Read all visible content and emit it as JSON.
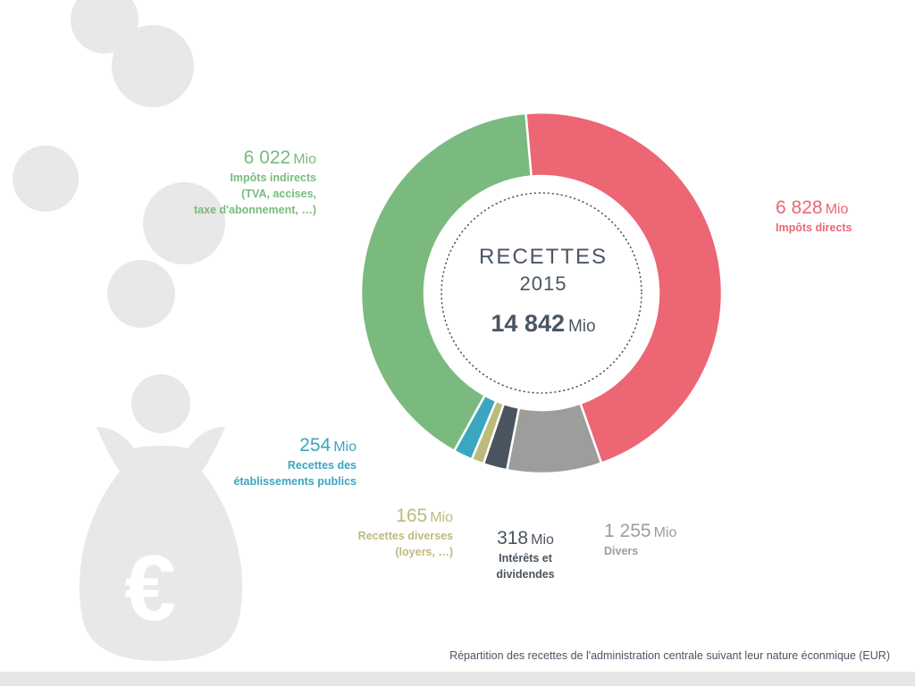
{
  "chart_data": {
    "type": "pie",
    "title": "RECETTES",
    "subtitle": "2015",
    "total": {
      "value": "14 842",
      "unit": "Mio"
    },
    "unit": "Mio",
    "slices": [
      {
        "label": "Impôts directs",
        "value": 6828,
        "display": "6 828",
        "color": "#ec6674"
      },
      {
        "label": "Divers",
        "value": 1255,
        "display": "1 255",
        "color": "#9d9d9c"
      },
      {
        "label": "Intérêts et dividendes",
        "value": 318,
        "display": "318",
        "color": "#4a545f"
      },
      {
        "label": "Recettes diverses (loyers, …)",
        "value": 165,
        "display": "165",
        "color": "#bdbb7b"
      },
      {
        "label": "Recettes des établissements publics",
        "value": 254,
        "display": "254",
        "color": "#3ba6bf"
      },
      {
        "label": "Impôts indirects (TVA, accises, taxe d'abonnement, …)",
        "value": 6022,
        "display": "6 022",
        "color": "#7aba7e"
      }
    ]
  },
  "labels": {
    "impots_directs": {
      "number": "6 828",
      "unit": "Mio",
      "name": "Impôts directs"
    },
    "impots_indirects": {
      "number": "6 022",
      "unit": "Mio",
      "line1": "Impôts indirects",
      "line2": "(TVA, accises,",
      "line3": "taxe d'abonnement, …)"
    },
    "etablissements": {
      "number": "254",
      "unit": "Mio",
      "line1": "Recettes des",
      "line2": "établissements publics"
    },
    "recettes_diverses": {
      "number": "165",
      "unit": "Mio",
      "line1": "Recettes diverses",
      "line2": "(loyers, …)"
    },
    "interets": {
      "number": "318",
      "unit": "Mio",
      "line1": "Intérêts et",
      "line2": "dividendes"
    },
    "divers": {
      "number": "1 255",
      "unit": "Mio",
      "name": "Divers"
    }
  },
  "center": {
    "title": "RECETTES",
    "year": "2015",
    "total_number": "14 842",
    "total_unit": "Mio"
  },
  "caption": "Répartition des recettes de l'administration centrale suivant leur nature éconmique (EUR)",
  "icons": {
    "money_bag": "euro-money-bag-icon",
    "coins": "coin-circles"
  },
  "colors": {
    "text_dark": "#4a5565",
    "deco_gray": "#e8e8e8"
  }
}
